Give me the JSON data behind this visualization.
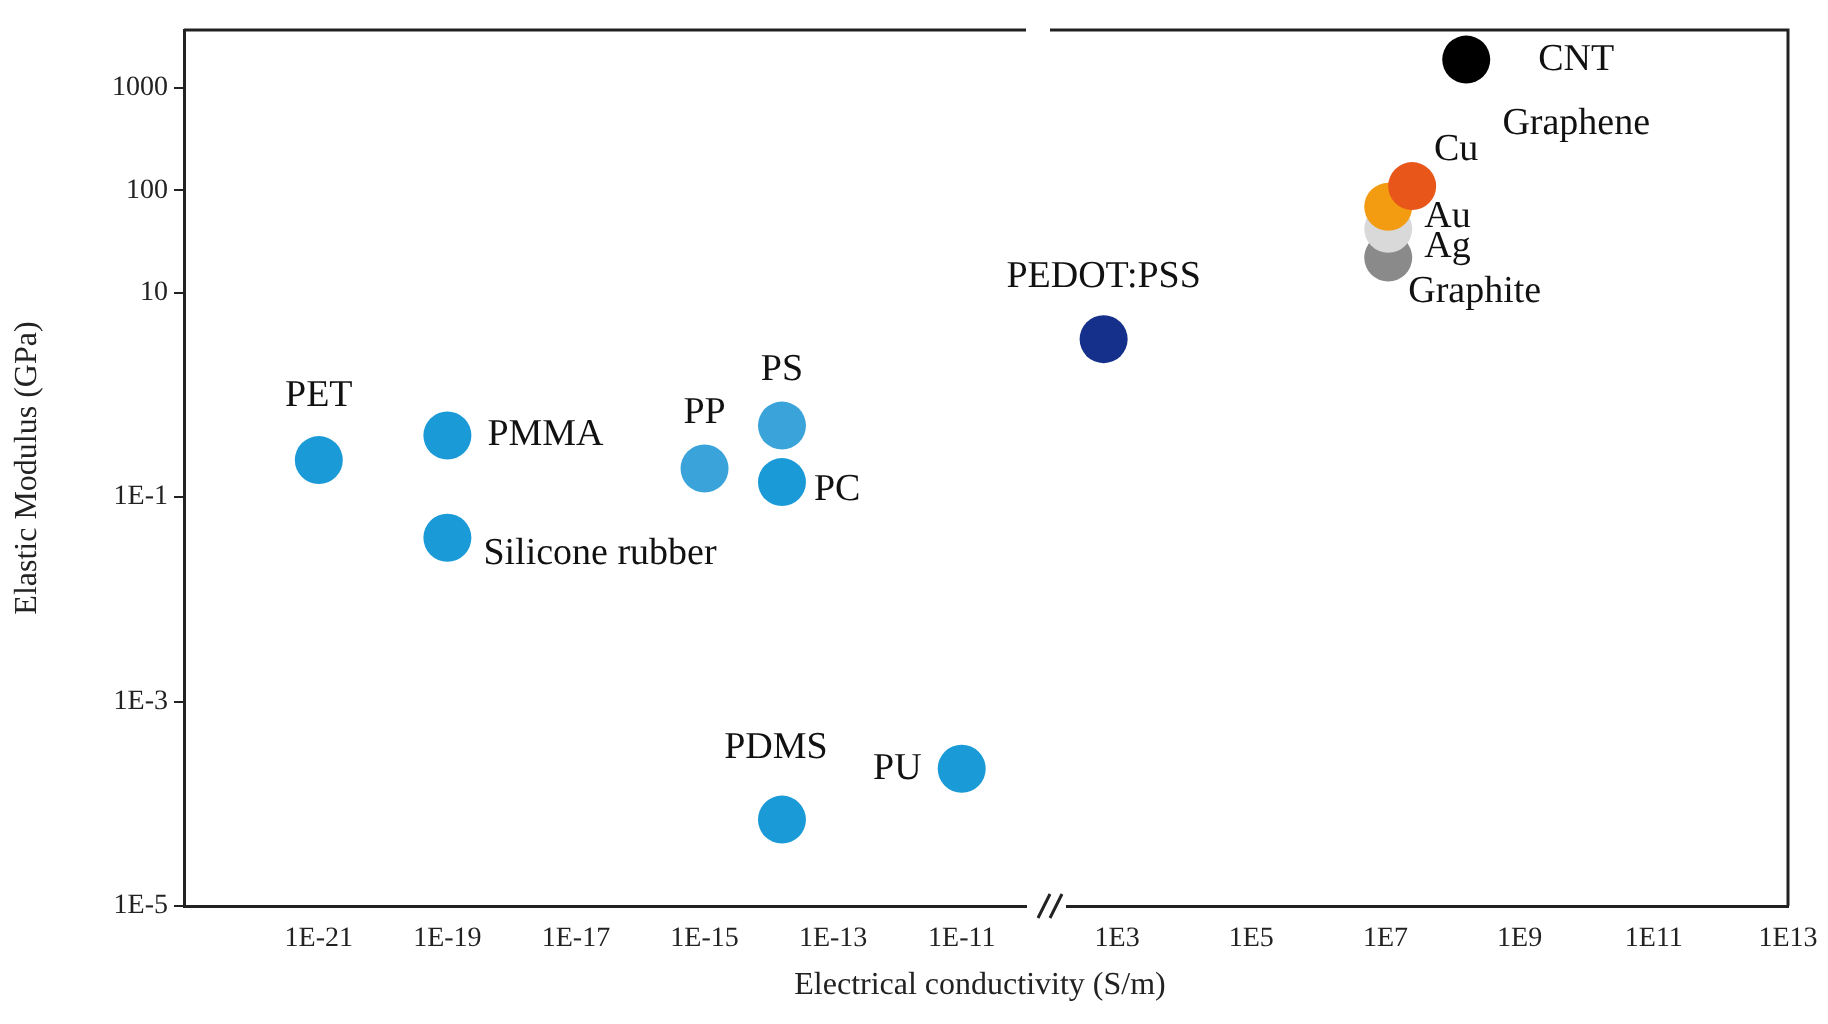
{
  "chart_data": [
    {
      "type": "scatter",
      "ylabel": "Elastic Modulus (GPa)",
      "xlabel": "Electrical conductivity (S/m)",
      "log": "xy",
      "marker": "circle",
      "xlim": [
        8e-24,
        1e-10
      ],
      "xticks": [
        {
          "value": 1e-21,
          "label": "1E-21"
        },
        {
          "value": 1e-19,
          "label": "1E-19"
        },
        {
          "value": 1e-17,
          "label": "1E-17"
        },
        {
          "value": 1e-15,
          "label": "1E-15"
        },
        {
          "value": 1e-13,
          "label": "1E-13"
        },
        {
          "value": 1e-11,
          "label": "1E-11"
        }
      ],
      "ylim": [
        1e-05,
        3700
      ],
      "yticks": [
        {
          "value": 1e-05,
          "label": "1E-5"
        },
        {
          "value": 0.001,
          "label": "1E-3"
        },
        {
          "value": 0.1,
          "label": "1E-1"
        },
        10,
        100,
        1000
      ],
      "series": [
        {
          "name": "PET",
          "color": "#1a9ad6",
          "x": [
            1e-21
          ],
          "values": [
            0.23
          ]
        },
        {
          "name": "PMMA",
          "color": "#1a9ad6",
          "x": [
            1e-19
          ],
          "values": [
            0.4
          ]
        },
        {
          "name": "Silicone rubber",
          "color": "#1a9ad6",
          "x": [
            1e-19
          ],
          "values": [
            0.04
          ]
        },
        {
          "name": "PP",
          "color": "#3aa3da",
          "x": [
            1e-15
          ],
          "values": [
            0.19
          ]
        },
        {
          "name": "PS",
          "color": "#3aa3da",
          "x": [
            1.6e-14
          ],
          "values": [
            0.5
          ]
        },
        {
          "name": "PC",
          "color": "#1a9ad6",
          "x": [
            1.6e-14
          ],
          "values": [
            0.14
          ]
        },
        {
          "name": "PDMS",
          "color": "#1a9ad6",
          "x": [
            1.6e-14
          ],
          "values": [
            7e-05
          ]
        },
        {
          "name": "PU",
          "color": "#1a9ad6",
          "x": [
            1e-11
          ],
          "values": [
            0.00022
          ]
        }
      ]
    },
    {
      "type": "scatter",
      "log": "xy",
      "marker": "circle",
      "tick_labels": "x",
      "xlim": [
        100,
        10000000000000.0
      ],
      "xticks": [
        {
          "value": 1000,
          "label": "1E3"
        },
        {
          "value": 100000,
          "label": "1E5"
        },
        {
          "value": 10000000,
          "label": "1E7"
        },
        {
          "value": 1000000000,
          "label": "1E9"
        },
        {
          "value": 100000000000,
          "label": "1E11"
        },
        {
          "value": 10000000000000,
          "label": "1E13"
        }
      ],
      "ylim": [
        1e-05,
        3700
      ],
      "series": [
        {
          "name": "PEDOT:PSS",
          "color": "#14308a",
          "x": [
            630
          ],
          "values": [
            3.5
          ]
        },
        {
          "name": "Cu",
          "color": "#e8561a",
          "x": [
            25000000.0
          ],
          "values": [
            110
          ]
        },
        {
          "name": "Au",
          "color": "#f39c12",
          "x": [
            11000000.0
          ],
          "values": [
            69
          ]
        },
        {
          "name": "Ag",
          "color": "#d9d9d9",
          "x": [
            11000000.0
          ],
          "values": [
            42
          ]
        },
        {
          "name": "Graphite",
          "color": "#8a8a8a",
          "x": [
            11000000.0
          ],
          "values": [
            22
          ]
        },
        {
          "name": "CNT\nGraphene",
          "color": "#000000",
          "x": [
            160000000.0
          ],
          "values": [
            1900
          ]
        }
      ]
    }
  ]
}
